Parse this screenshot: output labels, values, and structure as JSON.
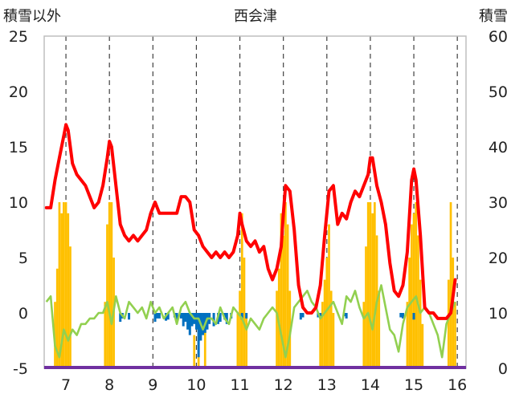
{
  "chart_data": {
    "type": "bar",
    "title": "西会津",
    "ylabel_left": "積雪以外",
    "ylabel_right": "積雪",
    "x_ticks": [
      "7",
      "8",
      "9",
      "10",
      "11",
      "12",
      "13",
      "14",
      "15",
      "16"
    ],
    "xlim": [
      6.5,
      16.2
    ],
    "ylim_left": [
      -5,
      25
    ],
    "ylim_right": [
      0,
      60
    ],
    "y_ticks_left": [
      "25",
      "20",
      "15",
      "10",
      "5",
      "0",
      "-5"
    ],
    "y_ticks_right": [
      "60",
      "50",
      "40",
      "30",
      "20",
      "10",
      "0"
    ],
    "gridlines": "dashed-vertical",
    "colors": {
      "snow_depth": "#ff0000",
      "precipitation": "#ffc000",
      "temperature": "#92d050",
      "negative_bars": "#0070c0",
      "baseline": "#7030a0"
    },
    "series": [
      {
        "key": "snow_depth",
        "axis": "right",
        "kind": "line",
        "x": [
          6.55,
          6.65,
          6.75,
          6.85,
          6.95,
          7.0,
          7.05,
          7.15,
          7.25,
          7.35,
          7.45,
          7.55,
          7.65,
          7.75,
          7.85,
          7.95,
          8.0,
          8.05,
          8.15,
          8.25,
          8.35,
          8.45,
          8.55,
          8.65,
          8.75,
          8.85,
          8.95,
          9.05,
          9.15,
          9.25,
          9.35,
          9.45,
          9.55,
          9.65,
          9.75,
          9.85,
          9.95,
          10.05,
          10.15,
          10.25,
          10.35,
          10.45,
          10.55,
          10.65,
          10.75,
          10.85,
          10.95,
          11.0,
          11.05,
          11.15,
          11.25,
          11.35,
          11.45,
          11.55,
          11.65,
          11.75,
          11.85,
          11.95,
          12.0,
          12.05,
          12.15,
          12.25,
          12.35,
          12.45,
          12.55,
          12.65,
          12.75,
          12.85,
          12.95,
          13.05,
          13.15,
          13.25,
          13.35,
          13.45,
          13.55,
          13.65,
          13.75,
          13.85,
          13.95,
          14.0,
          14.05,
          14.15,
          14.25,
          14.35,
          14.45,
          14.55,
          14.65,
          14.75,
          14.85,
          14.95,
          15.0,
          15.05,
          15.15,
          15.25,
          15.35,
          15.45,
          15.55,
          15.65,
          15.75,
          15.85,
          15.95
        ],
        "values": [
          29,
          29,
          34,
          38,
          42,
          44,
          43,
          37,
          35,
          34,
          33,
          31,
          29,
          30,
          33,
          38,
          41,
          40,
          33,
          26,
          24,
          23,
          24,
          23,
          24,
          25,
          28,
          30,
          28,
          28,
          28,
          28,
          28,
          31,
          31,
          30,
          25,
          24,
          22,
          21,
          20,
          21,
          20,
          21,
          20,
          21,
          24,
          28,
          26,
          23,
          22,
          23,
          21,
          22,
          18,
          16,
          18,
          22,
          28,
          33,
          32,
          25,
          15,
          11,
          10,
          10,
          11,
          15,
          24,
          32,
          33,
          26,
          28,
          27,
          30,
          32,
          31,
          33,
          35,
          38,
          38,
          33,
          30,
          26,
          19,
          14,
          13,
          15,
          21,
          34,
          36,
          34,
          24,
          11,
          10,
          10,
          9,
          9,
          9,
          10,
          16
        ]
      },
      {
        "key": "precipitation",
        "axis": "right",
        "kind": "bar",
        "x": [
          6.75,
          6.8,
          6.85,
          6.9,
          6.95,
          7.0,
          7.05,
          7.1,
          7.9,
          7.95,
          8.0,
          8.05,
          8.1,
          9.95,
          10.05,
          10.2,
          10.95,
          11.0,
          11.05,
          11.1,
          11.15,
          11.85,
          11.9,
          11.95,
          12.0,
          12.05,
          12.1,
          12.15,
          12.85,
          12.9,
          12.95,
          13.0,
          13.05,
          13.1,
          13.15,
          13.85,
          13.9,
          13.95,
          14.0,
          14.05,
          14.1,
          14.15,
          14.2,
          14.85,
          14.9,
          14.95,
          15.0,
          15.05,
          15.1,
          15.15,
          15.2,
          15.8,
          15.85,
          15.9,
          15.95
        ],
        "values": [
          12,
          18,
          30,
          28,
          30,
          30,
          28,
          22,
          12,
          26,
          30,
          30,
          20,
          6,
          8,
          10,
          10,
          14,
          28,
          20,
          10,
          14,
          18,
          28,
          24,
          30,
          26,
          14,
          10,
          12,
          16,
          20,
          26,
          14,
          10,
          12,
          22,
          30,
          30,
          28,
          30,
          24,
          14,
          12,
          20,
          26,
          28,
          30,
          24,
          16,
          8,
          16,
          30,
          20,
          12
        ]
      },
      {
        "key": "temperature",
        "axis": "left",
        "kind": "line",
        "x": [
          6.55,
          6.65,
          6.75,
          6.85,
          6.95,
          7.05,
          7.15,
          7.25,
          7.35,
          7.45,
          7.55,
          7.65,
          7.75,
          7.85,
          7.95,
          8.05,
          8.15,
          8.25,
          8.35,
          8.45,
          8.55,
          8.65,
          8.75,
          8.85,
          8.95,
          9.05,
          9.15,
          9.25,
          9.35,
          9.45,
          9.55,
          9.65,
          9.75,
          9.85,
          9.95,
          10.05,
          10.15,
          10.25,
          10.35,
          10.45,
          10.55,
          10.65,
          10.75,
          10.85,
          10.95,
          11.05,
          11.15,
          11.25,
          11.35,
          11.45,
          11.55,
          11.65,
          11.75,
          11.85,
          11.95,
          12.05,
          12.15,
          12.25,
          12.35,
          12.45,
          12.55,
          12.65,
          12.75,
          12.85,
          12.95,
          13.05,
          13.15,
          13.25,
          13.35,
          13.45,
          13.55,
          13.65,
          13.75,
          13.85,
          13.95,
          14.05,
          14.15,
          14.25,
          14.35,
          14.45,
          14.55,
          14.65,
          14.75,
          14.85,
          14.95,
          15.05,
          15.15,
          15.25,
          15.35,
          15.45,
          15.55,
          15.65,
          15.75,
          15.85,
          15.95
        ],
        "values": [
          1,
          1.5,
          -3,
          -4,
          -1.5,
          -2.5,
          -1.5,
          -2,
          -1,
          -1,
          -0.5,
          -0.5,
          0,
          0,
          1,
          -1,
          1.5,
          0,
          -0.5,
          1,
          0.5,
          0,
          0.5,
          -0.5,
          1,
          0,
          0.5,
          -0.5,
          0,
          0.5,
          -1,
          0.5,
          1,
          0,
          -0.5,
          -0.5,
          -1.5,
          -0.5,
          -0.5,
          -1,
          0.5,
          -0.5,
          -1,
          0.5,
          0,
          -0.5,
          -1.5,
          -0.5,
          -1,
          -1.5,
          -0.5,
          0,
          0.5,
          0,
          -2,
          -4,
          -2,
          0.5,
          1,
          1.5,
          2,
          1,
          0.5,
          -0.5,
          0,
          0.5,
          1,
          0,
          -1,
          1.5,
          1,
          2,
          0.5,
          -0.5,
          0,
          -1.5,
          1,
          2.5,
          0.5,
          -1.5,
          -2,
          -3.5,
          -1,
          0.5,
          1,
          1.5,
          0,
          0.5,
          0,
          -1,
          -2,
          -4,
          -1,
          0,
          1
        ]
      },
      {
        "key": "negative_bars",
        "axis": "left",
        "kind": "bar",
        "x": [
          8.25,
          8.3,
          8.45,
          9.05,
          9.1,
          9.15,
          9.3,
          9.35,
          9.5,
          9.55,
          9.65,
          9.7,
          9.75,
          9.8,
          9.85,
          9.9,
          9.95,
          10.0,
          10.05,
          10.1,
          10.15,
          10.2,
          10.25,
          10.3,
          10.4,
          10.5,
          10.55,
          10.65,
          10.7,
          10.8,
          11.05,
          11.15,
          12.4,
          12.45,
          12.8,
          12.85,
          13.4,
          13.45,
          14.7,
          14.75,
          15.0
        ],
        "values": [
          -0.8,
          -0.5,
          -0.6,
          -0.8,
          -0.5,
          -0.5,
          -0.7,
          -0.6,
          -0.4,
          -0.8,
          -0.5,
          -1.2,
          -0.8,
          -1.5,
          -2,
          -1.2,
          -1,
          -1.5,
          -4,
          -2.5,
          -2,
          -1.8,
          -1.5,
          -1,
          -1.2,
          -1,
          -0.8,
          -0.6,
          -1,
          -0.5,
          -0.6,
          -0.5,
          -0.6,
          -0.4,
          -0.4,
          -0.5,
          -0.3,
          -0.5,
          -0.4,
          -0.5,
          -0.6
        ]
      }
    ]
  }
}
